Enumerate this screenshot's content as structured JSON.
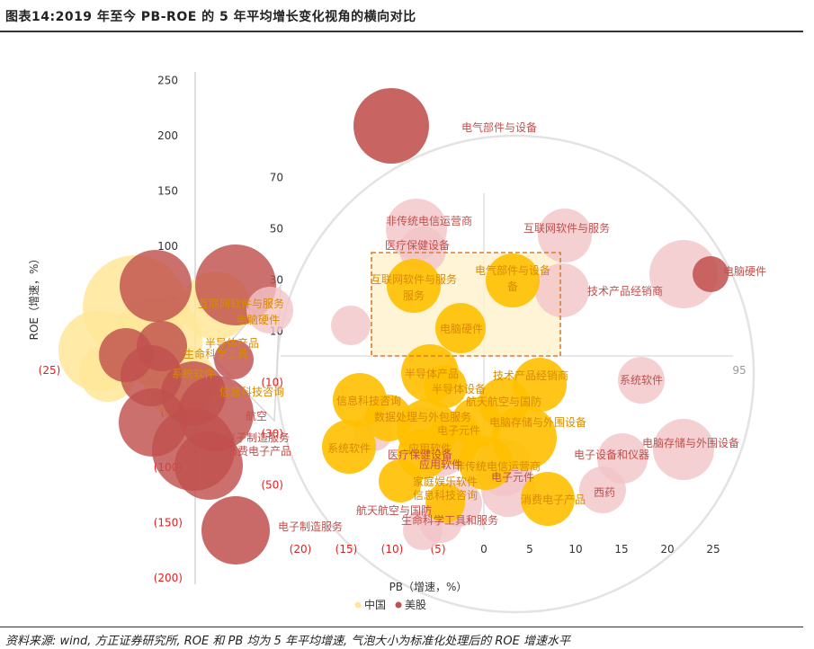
{
  "title": "图表14:2019 年至今 PB-ROE 的 5 年平均增长变化视角的横向对比",
  "source": "资料来源: wind, 方正证券研究所, ROE 和 PB 均为 5 年平均增速, 气泡大小为标准化处理后的 ROE 增速水平",
  "colors": {
    "china": "#FFC000",
    "china_light": "#FFE699",
    "us": "#C0504D",
    "us_light": "#F2C4C8",
    "label_us": "#C0504D",
    "label_cn": "#D98A00",
    "axis_text": "#333333",
    "neg_tick": "#E02020",
    "zoom_box": "#E07B28"
  },
  "chart_data": [
    {
      "type": "scatter",
      "name": "main",
      "xlabel": "",
      "ylabel": "ROE（增速，%）",
      "y_ticks": [
        "250",
        "200",
        "150",
        "100",
        "50",
        "(50)",
        "(100)",
        "(150)",
        "(200)"
      ],
      "x_ticks_left": [
        "(25)",
        "(5)"
      ],
      "series": [
        {
          "name": "中国",
          "role": "china"
        },
        {
          "name": "美股",
          "role": "us"
        }
      ],
      "points": [
        {
          "x": 6,
          "y": 207,
          "series": "美股",
          "label": "电气部件与设备"
        }
      ]
    },
    {
      "type": "scatter",
      "name": "zoom",
      "xlabel": "PB（增速，%）",
      "y_ticks": [
        "70",
        "50",
        "30",
        "10",
        "(10)",
        "(30)",
        "(50)"
      ],
      "x_ticks": [
        "(20)",
        "(15)",
        "(10)",
        "(5)",
        "0",
        "5",
        "10",
        "15",
        "20",
        "25"
      ],
      "x_extra_tick": "95",
      "legend": [
        "中国",
        "美股"
      ],
      "legend_position": "bottom"
    }
  ],
  "labels": {
    "us_upper": [
      "非传统电信运营商",
      "医疗保健设备",
      "互联网软件与服务",
      "技术产品经销商",
      "电脑硬件"
    ],
    "cn_upper": [
      "互联网软件与服务",
      "电气部件与设备",
      "电脑硬件",
      "半导体产品",
      "技术产品经销商",
      "半导体设备",
      "航天航空与国防",
      "系统软件",
      "应用软件",
      "电脑存储与外围设备",
      "非传统电信运营商",
      "家庭娱乐软件",
      "消费电子产品",
      "信息科技咨询",
      "生命科学工具和服务",
      "数据处理与外包服务",
      "电子元件"
    ],
    "us_lower": [
      "系统软件",
      "电子设备和仪器",
      "电脑存储与外围设备",
      "西药",
      "生命科学工具和服务",
      "医疗保健设备",
      "应用软件",
      "电子元件",
      "家庭娱乐软件",
      "消费电子产品",
      "航天航空与国防",
      "电子制造服务"
    ],
    "left_cluster": [
      "互联网软件与服务",
      "电脑硬件",
      "半导体产品",
      "系统软件",
      "生命科学工具",
      "信息科技咨询",
      "航空",
      "消费电子产品",
      "电子制造服务"
    ]
  }
}
